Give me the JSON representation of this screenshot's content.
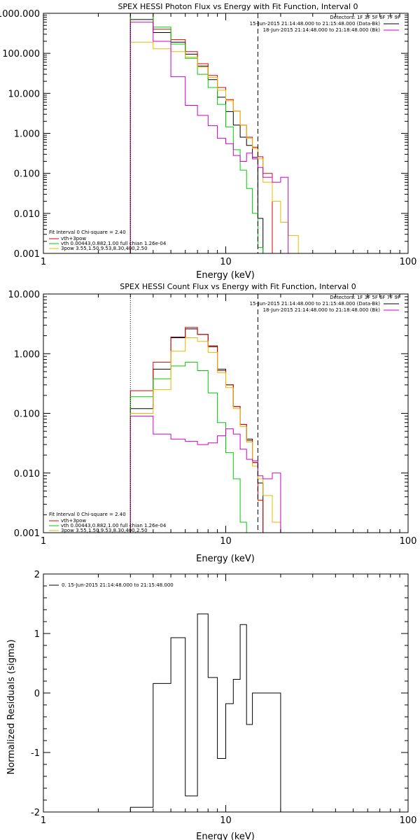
{
  "chart_data": [
    {
      "type": "line",
      "title": "SPEX HESSI Photon Flux vs Energy with Fit Function, Interval 0",
      "xlabel": "Energy (keV)",
      "ylabel": "",
      "x_scale": "log",
      "y_scale": "log",
      "xlim": [
        1,
        100
      ],
      "ylim": [
        0.001,
        1000
      ],
      "x_ticks": [
        1,
        10,
        100
      ],
      "x_tick_labels": [
        "1",
        "10",
        "100"
      ],
      "y_ticks": [
        0.001,
        0.01,
        0.1,
        1,
        10,
        100,
        1000
      ],
      "y_tick_labels": [
        "0.001",
        "0.010",
        "0.100",
        "1.000",
        "10.000",
        "100.000",
        "1000.000"
      ],
      "bin_edges": [
        3,
        4,
        5,
        6,
        7,
        8,
        9,
        10,
        11,
        12,
        13,
        14,
        15,
        16,
        18,
        20,
        22,
        25
      ],
      "series": [
        {
          "name": "15-Jun-2015 21:14:48.000 to 21:15:48.000 (Data-Bk)",
          "color": "#000000",
          "values": [
            700,
            330,
            190,
            95,
            48,
            22,
            8,
            3.5,
            1.6,
            0.8,
            0.5,
            0.25,
            0.0075
          ]
        },
        {
          "name": "vth+3pow",
          "color": "#dd0000",
          "values": [
            1200,
            400,
            220,
            110,
            55,
            28,
            14,
            7,
            3.6,
            1.6,
            0.8,
            0.45,
            0.26,
            0.1
          ]
        },
        {
          "name": "vth 0.00443,0.882,1.00  full chian 1.26e-04",
          "color": "#00cc00",
          "values": [
            2500,
            450,
            170,
            75,
            30,
            14,
            5.3,
            1.45,
            0.39,
            0.12,
            0.042,
            0.01,
            0.0014
          ]
        },
        {
          "name": "3pow 3.55,1.50,9.53,8.30,400,2.50",
          "color": "#e8b800",
          "values": [
            190,
            130,
            110,
            80,
            45,
            25,
            12,
            6.5,
            3.6,
            1.6,
            0.75,
            0.42,
            0.23,
            0.06,
            0.02,
            0.006,
            0.0028
          ]
        },
        {
          "name": "18-Jun-2015 21:14:48.000 to 21:18:48.000 (Bk)",
          "color": "#cc00cc",
          "values": [
            600,
            200,
            26,
            5.0,
            2.8,
            1.55,
            0.75,
            0.55,
            0.28,
            0.2,
            0.32,
            0.23,
            0.14,
            0.08,
            0.06,
            0.08,
            0.001
          ]
        }
      ],
      "vlines": [
        {
          "x": 3,
          "style": "dotted",
          "color": "#000000"
        },
        {
          "x": 15,
          "style": "dashed",
          "color": "#000000"
        }
      ],
      "detectors_label": "Detectors: 1F 3F 5F 6F 7F 9F",
      "fit_label": "Fit Interval 0   Chi-square = 2.40"
    },
    {
      "type": "line",
      "title": "SPEX HESSI Count Flux vs Energy with Fit Function, Interval 0",
      "xlabel": "Energy (keV)",
      "ylabel": "",
      "x_scale": "log",
      "y_scale": "log",
      "xlim": [
        1,
        100
      ],
      "ylim": [
        0.001,
        10
      ],
      "x_ticks": [
        1,
        10,
        100
      ],
      "x_tick_labels": [
        "1",
        "10",
        "100"
      ],
      "y_ticks": [
        0.001,
        0.01,
        0.1,
        1,
        10
      ],
      "y_tick_labels": [
        "0.001",
        "0.010",
        "0.100",
        "1.000",
        "10.000"
      ],
      "bin_edges": [
        3,
        4,
        5,
        6,
        7,
        8,
        9,
        10,
        11,
        12,
        13,
        14,
        15,
        16,
        18,
        20
      ],
      "series": [
        {
          "name": "15-Jun-2015 21:14:48.000 to 21:15:48.000 (Data-Bk)",
          "color": "#000000",
          "values": [
            0.12,
            0.55,
            1.85,
            2.6,
            2.1,
            1.35,
            0.55,
            0.3,
            0.13,
            0.065,
            0.037,
            0.015,
            0.0068
          ]
        },
        {
          "name": "vth+3pow",
          "color": "#dd0000",
          "values": [
            0.24,
            0.72,
            1.9,
            2.75,
            2.1,
            1.3,
            0.52,
            0.3,
            0.13,
            0.065,
            0.035,
            0.015,
            0.0035
          ]
        },
        {
          "name": "vth 0.00443,0.882,1.00  full chian 1.26e-04",
          "color": "#00cc00",
          "values": [
            0.19,
            0.38,
            0.62,
            0.72,
            0.52,
            0.22,
            0.07,
            0.022,
            0.008,
            0.0015
          ]
        },
        {
          "name": "3pow 3.55,1.50,9.53,8.30,400,2.50",
          "color": "#e8b800",
          "values": [
            0.1,
            0.25,
            1.1,
            1.85,
            1.6,
            1.05,
            0.48,
            0.27,
            0.12,
            0.06,
            0.033,
            0.013,
            0.008,
            0.0042,
            0.0015
          ]
        },
        {
          "name": "18-Jun-2015 21:14:48.000 to 21:18:48.000 (Bk)",
          "color": "#cc00cc",
          "values": [
            0.09,
            0.045,
            0.037,
            0.034,
            0.03,
            0.032,
            0.042,
            0.055,
            0.045,
            0.025,
            0.017,
            0.016,
            0.009,
            0.008,
            0.01
          ]
        }
      ],
      "vlines": [
        {
          "x": 3,
          "style": "dotted",
          "color": "#000000"
        },
        {
          "x": 15,
          "style": "dashed",
          "color": "#000000"
        }
      ],
      "detectors_label": "Detectors: 1F 3F 5F 6F 7F 9F",
      "fit_label": "Fit Interval 0   Chi-square = 2.40"
    },
    {
      "type": "line",
      "title": "",
      "xlabel": "Energy (keV)",
      "ylabel": "Normalized Residuals (sigma)",
      "x_scale": "log",
      "y_scale": "linear",
      "xlim": [
        1,
        100
      ],
      "ylim": [
        -2,
        2
      ],
      "x_ticks": [
        1,
        10,
        100
      ],
      "x_tick_labels": [
        "1",
        "10",
        "100"
      ],
      "y_ticks": [
        -2,
        -1,
        0,
        1,
        2
      ],
      "y_tick_labels": [
        "-2",
        "-1",
        "0",
        "1",
        "2"
      ],
      "bin_edges": [
        3,
        4,
        5,
        6,
        7,
        8,
        9,
        10,
        11,
        12,
        13,
        14,
        15,
        16,
        18,
        20
      ],
      "series": [
        {
          "name": "0. 15-Jun-2015 21:14:48.000 to 21:15:48.000",
          "color": "#000000",
          "values": [
            -1.92,
            0.16,
            0.93,
            -1.73,
            1.33,
            0.26,
            -1.1,
            -0.18,
            0.23,
            1.15,
            -0.53,
            0.0,
            0.0,
            0.0,
            0.0
          ]
        }
      ]
    }
  ]
}
